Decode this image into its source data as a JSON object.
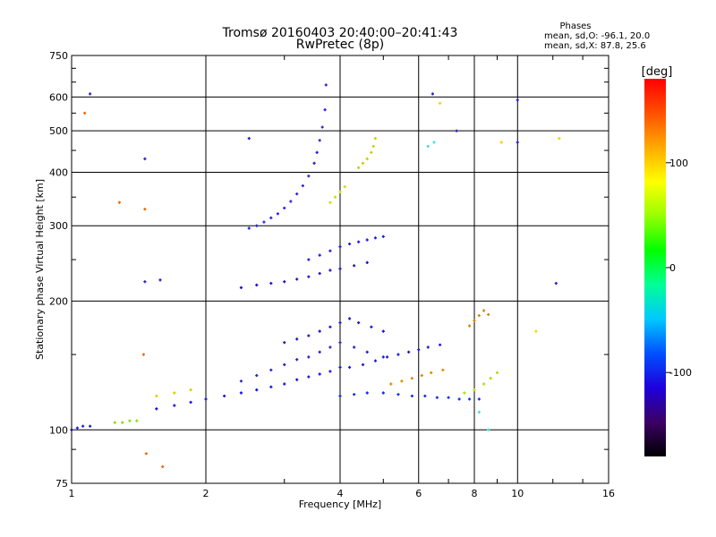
{
  "chart_data": {
    "type": "scatter",
    "title": "Tromsø 20160403 20:40:00–20:41:43",
    "subtitle": "RwPretec (8p)",
    "xlabel": "Frequency [MHz]",
    "ylabel": "Stationary phase Virtual Height [km]",
    "x_scale": "log",
    "y_scale": "log",
    "xlim": [
      1,
      16
    ],
    "ylim": [
      75,
      750
    ],
    "x_ticks": [
      1,
      2,
      4,
      6,
      8,
      10,
      16
    ],
    "y_ticks": [
      75,
      100,
      200,
      300,
      400,
      500,
      600,
      750
    ],
    "grid": true,
    "phase_info": {
      "heading": "Phases",
      "line1": "mean, sd,O: -96.1, 20.0",
      "line2": "mean, sd,X:  87.8, 25.6"
    },
    "colorbar": {
      "label": "[deg]",
      "ticks": [
        100,
        0,
        -100
      ],
      "range": [
        -180,
        180
      ],
      "colors": [
        "#000000",
        "#3c0064",
        "#1e00dc",
        "#0050ff",
        "#00c8ff",
        "#00ff96",
        "#00ff00",
        "#96ff00",
        "#ffff00",
        "#ffaa00",
        "#ff5000",
        "#ff0000"
      ]
    },
    "series": [
      {
        "color": "#2222dd",
        "points": [
          [
            2.5,
            296
          ],
          [
            2.6,
            300
          ],
          [
            2.7,
            306
          ],
          [
            2.8,
            313
          ],
          [
            2.9,
            320
          ],
          [
            3.0,
            330
          ],
          [
            3.1,
            342
          ],
          [
            3.2,
            356
          ],
          [
            3.3,
            372
          ],
          [
            3.4,
            392
          ],
          [
            3.5,
            420
          ],
          [
            3.55,
            445
          ],
          [
            3.6,
            475
          ],
          [
            3.65,
            510
          ],
          [
            3.7,
            560
          ],
          [
            3.72,
            640
          ]
        ]
      },
      {
        "color": "#1a10cc",
        "points": [
          [
            2.4,
            215
          ],
          [
            2.6,
            218
          ],
          [
            2.8,
            220
          ],
          [
            3.0,
            222
          ],
          [
            3.2,
            225
          ],
          [
            3.4,
            228
          ],
          [
            3.6,
            232
          ],
          [
            3.8,
            236
          ],
          [
            4.0,
            238
          ],
          [
            4.3,
            242
          ],
          [
            4.6,
            246
          ]
        ]
      },
      {
        "color": "#1a1ad8",
        "points": [
          [
            3.4,
            250
          ],
          [
            3.6,
            256
          ],
          [
            3.8,
            262
          ],
          [
            4.0,
            268
          ],
          [
            4.2,
            272
          ],
          [
            4.4,
            275
          ],
          [
            4.6,
            278
          ],
          [
            4.8,
            281
          ],
          [
            5.0,
            283
          ]
        ]
      },
      {
        "color": "#1010e0",
        "points": [
          [
            1.55,
            112
          ],
          [
            1.7,
            114
          ],
          [
            1.85,
            116
          ],
          [
            2.0,
            118
          ],
          [
            2.2,
            120
          ],
          [
            2.4,
            122
          ],
          [
            2.6,
            124
          ],
          [
            2.8,
            126
          ],
          [
            3.0,
            128
          ],
          [
            3.2,
            131
          ],
          [
            3.4,
            133
          ],
          [
            3.6,
            135
          ],
          [
            3.8,
            137
          ],
          [
            4.0,
            140
          ]
        ]
      },
      {
        "color": "#2020cc",
        "points": [
          [
            2.4,
            130
          ],
          [
            2.6,
            134
          ],
          [
            2.8,
            138
          ],
          [
            3.0,
            142
          ],
          [
            3.2,
            146
          ],
          [
            3.4,
            148
          ],
          [
            3.6,
            152
          ],
          [
            3.8,
            156
          ],
          [
            4.0,
            160
          ],
          [
            4.3,
            156
          ],
          [
            4.6,
            152
          ],
          [
            5.0,
            148
          ]
        ]
      },
      {
        "color": "#1515d0",
        "points": [
          [
            3.0,
            160
          ],
          [
            3.2,
            163
          ],
          [
            3.4,
            166
          ],
          [
            3.6,
            170
          ],
          [
            3.8,
            174
          ],
          [
            4.0,
            178
          ],
          [
            4.2,
            182
          ],
          [
            4.4,
            178
          ],
          [
            4.7,
            174
          ],
          [
            5.0,
            170
          ]
        ]
      },
      {
        "color": "#0c28e6",
        "points": [
          [
            4.0,
            120
          ],
          [
            4.3,
            121
          ],
          [
            4.6,
            122
          ],
          [
            5.0,
            122
          ],
          [
            5.4,
            121
          ],
          [
            5.8,
            120
          ],
          [
            6.2,
            120
          ],
          [
            6.6,
            119
          ],
          [
            7.0,
            119
          ],
          [
            7.4,
            118
          ],
          [
            7.8,
            118
          ],
          [
            8.2,
            118
          ]
        ]
      },
      {
        "color": "#1a1ad0",
        "points": [
          [
            4.2,
            140
          ],
          [
            4.5,
            142
          ],
          [
            4.8,
            145
          ],
          [
            5.1,
            148
          ],
          [
            5.4,
            150
          ],
          [
            5.7,
            152
          ],
          [
            6.0,
            154
          ],
          [
            6.3,
            156
          ],
          [
            6.7,
            158
          ]
        ]
      },
      {
        "color": "#cccc00",
        "points": [
          [
            4.4,
            410
          ],
          [
            4.5,
            420
          ],
          [
            4.6,
            430
          ],
          [
            4.7,
            445
          ],
          [
            4.75,
            460
          ],
          [
            4.8,
            480
          ]
        ]
      },
      {
        "color": "#c8dc00",
        "points": [
          [
            3.8,
            340
          ],
          [
            3.9,
            350
          ],
          [
            4.0,
            360
          ],
          [
            4.1,
            370
          ]
        ]
      },
      {
        "color": "#dd8800",
        "points": [
          [
            5.2,
            128
          ],
          [
            5.5,
            130
          ],
          [
            5.8,
            132
          ],
          [
            6.1,
            134
          ],
          [
            6.4,
            136
          ],
          [
            6.8,
            138
          ]
        ]
      },
      {
        "color": "#aadd00",
        "points": [
          [
            7.6,
            122
          ],
          [
            8.0,
            124
          ],
          [
            8.4,
            128
          ],
          [
            8.7,
            132
          ],
          [
            9.0,
            136
          ]
        ]
      },
      {
        "color": "#cc8800",
        "points": [
          [
            7.8,
            175
          ],
          [
            8.0,
            180
          ],
          [
            8.2,
            185
          ],
          [
            8.4,
            190
          ],
          [
            8.6,
            186
          ]
        ]
      },
      {
        "color": "#ddcc00",
        "points": [
          [
            1.55,
            120
          ],
          [
            1.7,
            122
          ],
          [
            1.85,
            124
          ]
        ]
      },
      {
        "color": "#88dd00",
        "points": [
          [
            1.25,
            104
          ],
          [
            1.3,
            104
          ],
          [
            1.35,
            105
          ],
          [
            1.4,
            105
          ]
        ]
      },
      {
        "color": "#1a1ad8",
        "points": [
          [
            1.0,
            100
          ],
          [
            1.03,
            101
          ],
          [
            1.06,
            102
          ],
          [
            1.1,
            102
          ]
        ]
      },
      {
        "color": "#ee6600",
        "points": [
          [
            1.07,
            550
          ],
          [
            1.28,
            340
          ],
          [
            1.46,
            328
          ],
          [
            1.45,
            150
          ],
          [
            1.47,
            88
          ],
          [
            1.6,
            82
          ]
        ]
      },
      {
        "color": "#2020cc",
        "points": [
          [
            1.1,
            610
          ],
          [
            1.46,
            430
          ],
          [
            1.46,
            222
          ],
          [
            1.58,
            224
          ],
          [
            2.5,
            480
          ],
          [
            6.45,
            610
          ],
          [
            7.3,
            500
          ],
          [
            10.0,
            590
          ],
          [
            10.0,
            470
          ],
          [
            12.2,
            220
          ]
        ]
      },
      {
        "color": "#44dddd",
        "points": [
          [
            6.3,
            460
          ],
          [
            6.5,
            470
          ],
          [
            8.2,
            110
          ],
          [
            8.6,
            100
          ]
        ]
      },
      {
        "color": "#ffcc00",
        "points": [
          [
            6.7,
            580
          ],
          [
            9.2,
            470
          ],
          [
            12.4,
            480
          ],
          [
            11.0,
            170
          ]
        ]
      }
    ]
  }
}
